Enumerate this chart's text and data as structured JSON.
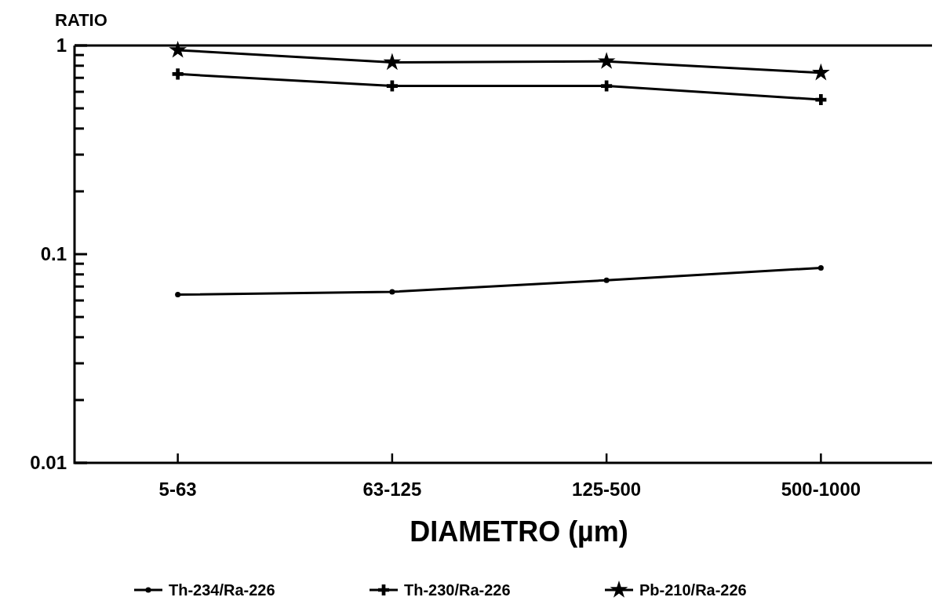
{
  "chart_data": {
    "type": "line",
    "ylabel": "RATIO",
    "xlabel": "DIAMETRO (µm)",
    "categories": [
      "5-63",
      "63-125",
      "125-500",
      "500-1000"
    ],
    "log": "y",
    "ylim": [
      0.01,
      1
    ],
    "yticks": [
      0.01,
      {
        "value": 0.02,
        "label": null
      },
      {
        "value": 0.03,
        "label": null
      },
      {
        "value": 0.04,
        "label": null
      },
      {
        "value": 0.05,
        "label": null
      },
      {
        "value": 0.06,
        "label": null
      },
      {
        "value": 0.07,
        "label": null
      },
      {
        "value": 0.08,
        "label": null
      },
      {
        "value": 0.09,
        "label": null
      },
      0.1,
      {
        "value": 0.2,
        "label": null
      },
      {
        "value": 0.3,
        "label": null
      },
      {
        "value": 0.4,
        "label": null
      },
      {
        "value": 0.5,
        "label": null
      },
      {
        "value": 0.6,
        "label": null
      },
      {
        "value": 0.7,
        "label": null
      },
      {
        "value": 0.8,
        "label": null
      },
      {
        "value": 0.9,
        "label": null
      },
      1
    ],
    "legend": "bottom",
    "grid": false,
    "series": [
      {
        "name": "Th-234/Ra-226",
        "color": "#000000",
        "marker": "circle",
        "values": [
          0.064,
          0.066,
          0.075,
          0.086
        ]
      },
      {
        "name": "Th-230/Ra-226",
        "color": "#000000",
        "marker": "cross",
        "values": [
          0.73,
          0.64,
          0.64,
          0.55
        ]
      },
      {
        "name": "Pb-210/Ra-226",
        "color": "#000000",
        "marker": "star",
        "values": [
          0.95,
          0.83,
          0.84,
          0.74
        ]
      }
    ]
  }
}
